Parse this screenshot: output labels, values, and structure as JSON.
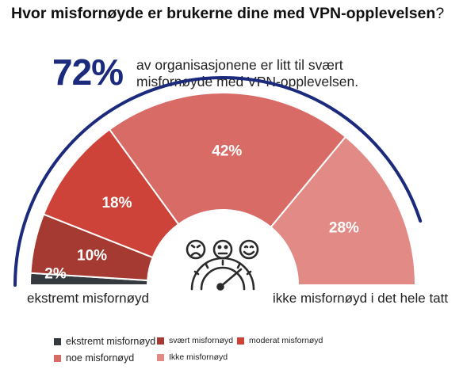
{
  "title": {
    "bold": "Hvor misfornøyde er brukerne dine med VPN-opplevelsen",
    "suffix": "?"
  },
  "highlight": {
    "value": "72%",
    "text": "av organisasjonene er litt til svært misfornøyde med VPN-opplevelsen."
  },
  "colors": {
    "ekstremt": "#353a3f",
    "svaert": "#a53a32",
    "moderat": "#cd4339",
    "noe": "#d96b67",
    "ikke": "#e18a86",
    "arc": "#1b2a7c",
    "icon": "#2b2b2b"
  },
  "icon": "gauge-with-faces-icon",
  "chart_data": {
    "type": "pie",
    "variant": "semicircle-gauge",
    "categories": [
      "ekstremt misfornøyd",
      "svært misfornøyd",
      "moderat misfornøyd",
      "noe misfornøyd",
      "Ikke misfornøyd"
    ],
    "values": [
      2,
      10,
      18,
      42,
      28
    ],
    "data_labels": [
      "2%",
      "10%",
      "18%",
      "42%",
      "28%"
    ],
    "end_labels": {
      "left": "ekstremt misfornøyd",
      "right": "ikke misfornøyd i det hele tatt"
    },
    "legend_position": "bottom"
  },
  "legend": [
    {
      "label": "ekstremt misfornøyd",
      "color": "#353a3f"
    },
    {
      "label": "svært misfornøyd",
      "color": "#a53a32"
    },
    {
      "label": "moderat misfornøyd",
      "color": "#cd4339"
    },
    {
      "label": "noe misfornøyd",
      "color": "#d96b67"
    },
    {
      "label": "Ikke misfornøyd",
      "color": "#e18a86"
    }
  ]
}
